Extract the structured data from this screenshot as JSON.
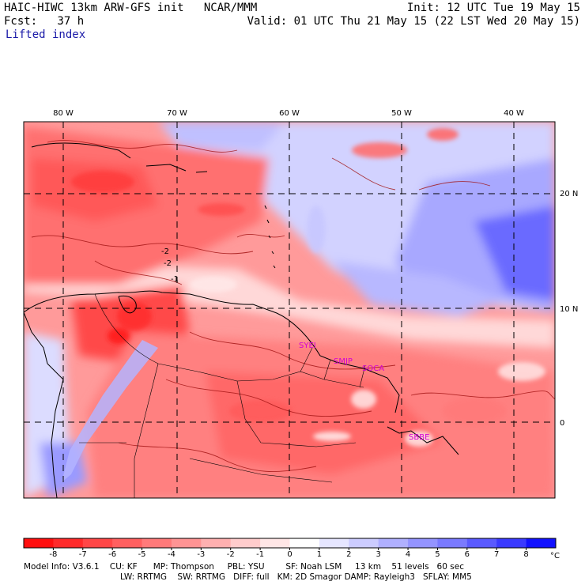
{
  "header": {
    "title": "HAIC-HIWC 13km ARW-GFS init   NCAR/MMM",
    "forecast": "Fcst:   37 h",
    "variable": "Lifted index",
    "init": "Init: 12 UTC Tue 19 May 15",
    "valid": "Valid: 01 UTC Thu 21 May 15 (22 LST Wed 20 May 15)"
  },
  "map": {
    "lon_labels": [
      "80 W",
      "70 W",
      "60 W",
      "50 W",
      "40 W"
    ],
    "lat_labels": [
      "20 N",
      "10 N",
      "0"
    ],
    "contour_labels": [
      "-2",
      "-2",
      "-1"
    ],
    "station_labels": [
      "SYEI",
      "SMJP",
      "SOCA",
      "SBBE"
    ]
  },
  "colorbar": {
    "ticks": [
      "-8",
      "-7",
      "-6",
      "-5",
      "-4",
      "-3",
      "-2",
      "-1",
      "0",
      "1",
      "2",
      "3",
      "4",
      "5",
      "6",
      "7",
      "8"
    ],
    "unit": "°C",
    "colors": [
      "#ff0f0f",
      "#ff2a2a",
      "#ff4747",
      "#ff6060",
      "#ff7a7a",
      "#ff9494",
      "#ffb0b0",
      "#ffcccc",
      "#ffe6e6",
      "#ffffff",
      "#e6e6ff",
      "#ccccff",
      "#b0b0ff",
      "#9494ff",
      "#7a7aff",
      "#5a5aff",
      "#3a3aff",
      "#1111ff"
    ]
  },
  "footer": {
    "line1": "Model Info: V3.6.1    CU: KF      MP: Thompson     PBL: YSU        SF: Noah LSM     13 km    51 levels   60 sec",
    "line2": "LW: RRTMG    SW: RRTMG   DIFF: full   KM: 2D Smagor DAMP: Rayleigh3   SFLAY: MM5"
  }
}
